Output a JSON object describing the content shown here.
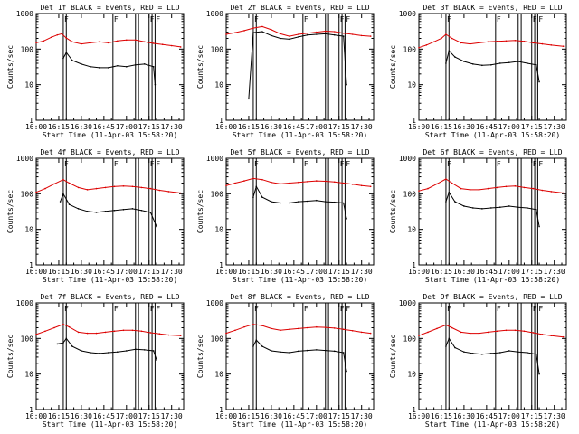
{
  "colors": {
    "events": "#000000",
    "lld": "#dd0000",
    "axis": "#000000"
  },
  "chart_data": {
    "type": "line",
    "layout": "3x3 grid of log-scale time-series panels",
    "ylabel": "Counts/sec",
    "xlabel": "Start Time (11-Apr-03 15:58:20)",
    "x_ticks": [
      "16:00",
      "16:15",
      "16:30",
      "16:45",
      "17:00",
      "17:15",
      "17:30"
    ],
    "x_range_minutes": [
      0,
      98
    ],
    "y_scale": "log",
    "ylim": [
      1,
      1000
    ],
    "y_ticks": [
      "1",
      "10",
      "100",
      "1000"
    ],
    "x_tick_minutes": [
      0,
      15,
      30,
      45,
      60,
      75,
      90
    ],
    "y_tick_values": [
      1,
      10,
      100,
      1000
    ],
    "events_start_minute": 18,
    "flag_lines_minutes": [
      18,
      20,
      51,
      66,
      68,
      75,
      77,
      79
    ],
    "panel_flags": [
      "F",
      "F",
      "F",
      "F"
    ],
    "panel_flag_minutes": [
      18,
      51,
      75,
      79
    ],
    "panels": [
      {
        "title": "Det 1f BLACK = Events, RED = LLD",
        "series": [
          {
            "name": "LLD",
            "x": [
              0,
              5,
              10,
              14,
              17,
              20,
              24,
              30,
              36,
              42,
              48,
              54,
              60,
              66,
              72,
              78,
              84,
              90,
              96
            ],
            "y": [
              150,
              170,
              215,
              250,
              270,
              205,
              160,
              140,
              150,
              160,
              150,
              170,
              180,
              180,
              160,
              145,
              135,
              125,
              115
            ]
          },
          {
            "name": "Events",
            "x": [
              18,
              20,
              24,
              30,
              36,
              42,
              48,
              54,
              60,
              66,
              72,
              78,
              79
            ],
            "y": [
              55,
              80,
              48,
              38,
              32,
              30,
              30,
              34,
              32,
              36,
              38,
              32,
              10
            ]
          }
        ]
      },
      {
        "title": "Det 2f BLACK = Events, RED = LLD",
        "series": [
          {
            "name": "LLD",
            "x": [
              0,
              6,
              12,
              18,
              24,
              30,
              36,
              42,
              48,
              54,
              60,
              66,
              72,
              78,
              84,
              90,
              96
            ],
            "y": [
              260,
              290,
              330,
              390,
              430,
              350,
              270,
              230,
              260,
              280,
              300,
              320,
              310,
              280,
              260,
              240,
              230
            ]
          },
          {
            "name": "Events",
            "x": [
              15,
              18,
              24,
              30,
              36,
              42,
              48,
              54,
              60,
              66,
              72,
              78,
              80
            ],
            "y": [
              4,
              290,
              310,
              240,
              200,
              190,
              220,
              250,
              260,
              270,
              250,
              230,
              10
            ]
          }
        ]
      },
      {
        "title": "Det 3f BLACK = Events, RED = LLD",
        "series": [
          {
            "name": "LLD",
            "x": [
              0,
              5,
              10,
              15,
              18,
              22,
              28,
              34,
              40,
              46,
              52,
              58,
              64,
              70,
              76,
              82,
              88,
              96
            ],
            "y": [
              110,
              130,
              160,
              200,
              260,
              200,
              150,
              140,
              150,
              160,
              165,
              170,
              175,
              165,
              150,
              140,
              130,
              120
            ]
          },
          {
            "name": "Events",
            "x": [
              18,
              20,
              24,
              30,
              36,
              42,
              48,
              54,
              60,
              66,
              72,
              78,
              80
            ],
            "y": [
              40,
              90,
              60,
              45,
              38,
              35,
              36,
              40,
              42,
              45,
              40,
              36,
              12
            ]
          }
        ]
      },
      {
        "title": "Det 4f BLACK = Events, RED = LLD",
        "series": [
          {
            "name": "LLD",
            "x": [
              0,
              6,
              12,
              18,
              22,
              28,
              34,
              40,
              46,
              52,
              58,
              64,
              70,
              76,
              82,
              88,
              96
            ],
            "y": [
              110,
              140,
              190,
              250,
              200,
              150,
              130,
              140,
              150,
              160,
              165,
              160,
              150,
              140,
              125,
              115,
              105
            ]
          },
          {
            "name": "Events",
            "x": [
              16,
              18,
              22,
              28,
              34,
              40,
              46,
              52,
              58,
              64,
              70,
              76,
              80
            ],
            "y": [
              60,
              100,
              50,
              38,
              32,
              30,
              32,
              34,
              36,
              38,
              34,
              30,
              12
            ]
          }
        ]
      },
      {
        "title": "Det 5f BLACK = Events, RED = LLD",
        "series": [
          {
            "name": "LLD",
            "x": [
              0,
              6,
              12,
              18,
              24,
              30,
              36,
              42,
              48,
              54,
              60,
              66,
              72,
              78,
              84,
              90,
              96
            ],
            "y": [
              170,
              200,
              230,
              270,
              250,
              210,
              190,
              200,
              210,
              220,
              230,
              225,
              215,
              200,
              185,
              170,
              160
            ]
          },
          {
            "name": "Events",
            "x": [
              18,
              20,
              24,
              30,
              36,
              42,
              48,
              54,
              60,
              66,
              72,
              78,
              80
            ],
            "y": [
              80,
              160,
              80,
              60,
              55,
              55,
              60,
              62,
              65,
              60,
              58,
              55,
              20
            ]
          }
        ]
      },
      {
        "title": "Det 6f BLACK = Events, RED = LLD",
        "series": [
          {
            "name": "LLD",
            "x": [
              0,
              6,
              12,
              18,
              22,
              28,
              34,
              40,
              46,
              52,
              58,
              64,
              70,
              76,
              82,
              88,
              96
            ],
            "y": [
              120,
              140,
              190,
              260,
              200,
              140,
              130,
              130,
              140,
              150,
              160,
              165,
              150,
              140,
              125,
              115,
              105
            ]
          },
          {
            "name": "Events",
            "x": [
              18,
              20,
              24,
              30,
              36,
              42,
              48,
              54,
              60,
              66,
              72,
              78,
              80
            ],
            "y": [
              60,
              110,
              60,
              45,
              40,
              38,
              40,
              42,
              45,
              42,
              40,
              36,
              12
            ]
          }
        ]
      },
      {
        "title": "Det 7f BLACK = Events, RED = LLD",
        "series": [
          {
            "name": "LLD",
            "x": [
              0,
              6,
              12,
              18,
              22,
              28,
              34,
              40,
              46,
              52,
              58,
              64,
              70,
              76,
              82,
              88,
              96
            ],
            "y": [
              130,
              160,
              200,
              250,
              210,
              150,
              140,
              140,
              150,
              160,
              170,
              170,
              160,
              145,
              135,
              125,
              120
            ]
          },
          {
            "name": "Events",
            "x": [
              14,
              18,
              20,
              24,
              30,
              36,
              42,
              48,
              54,
              60,
              66,
              72,
              78,
              80
            ],
            "y": [
              70,
              75,
              100,
              60,
              45,
              40,
              38,
              40,
              42,
              45,
              50,
              48,
              45,
              25
            ]
          }
        ]
      },
      {
        "title": "Det 8f BLACK = Events, RED = LLD",
        "series": [
          {
            "name": "LLD",
            "x": [
              0,
              6,
              12,
              18,
              24,
              30,
              36,
              42,
              48,
              54,
              60,
              66,
              72,
              78,
              84,
              90,
              96
            ],
            "y": [
              140,
              170,
              210,
              250,
              230,
              190,
              170,
              180,
              190,
              200,
              210,
              205,
              195,
              180,
              165,
              150,
              140
            ]
          },
          {
            "name": "Events",
            "x": [
              18,
              20,
              24,
              30,
              36,
              42,
              48,
              54,
              60,
              66,
              72,
              78,
              80
            ],
            "y": [
              60,
              90,
              60,
              45,
              42,
              40,
              44,
              46,
              48,
              46,
              44,
              40,
              12
            ]
          }
        ]
      },
      {
        "title": "Det 9f BLACK = Events, RED = LLD",
        "series": [
          {
            "name": "LLD",
            "x": [
              0,
              6,
              12,
              18,
              22,
              28,
              34,
              40,
              46,
              52,
              58,
              64,
              70,
              76,
              82,
              88,
              96
            ],
            "y": [
              120,
              150,
              190,
              240,
              200,
              150,
              140,
              140,
              150,
              160,
              170,
              170,
              160,
              145,
              130,
              120,
              110
            ]
          },
          {
            "name": "Events",
            "x": [
              18,
              20,
              24,
              30,
              36,
              42,
              48,
              54,
              60,
              66,
              72,
              78,
              80
            ],
            "y": [
              60,
              100,
              55,
              42,
              38,
              36,
              38,
              40,
              45,
              42,
              40,
              36,
              10
            ]
          }
        ]
      }
    ]
  }
}
